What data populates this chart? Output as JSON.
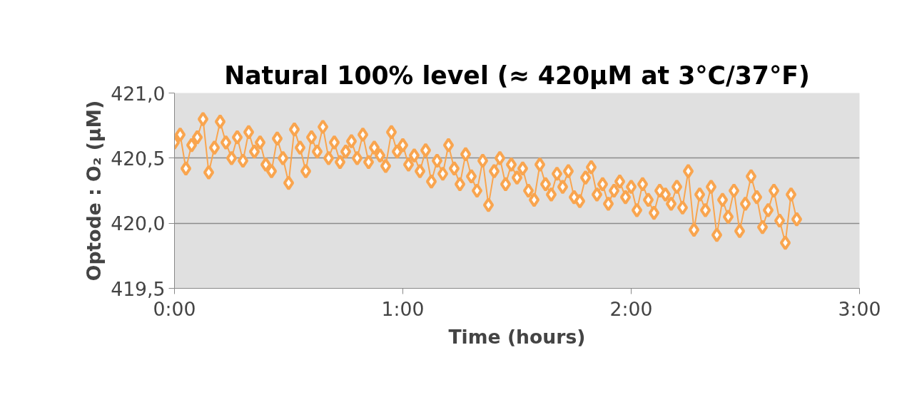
{
  "chart_data": {
    "type": "line",
    "title": "Natural 100% level (≈ 420µM at 3°C/37°F)",
    "xlabel": "Time (hours)",
    "ylabel": "Optode : O₂ (µM)",
    "marker": "diamond",
    "line_style": "solid",
    "grid": "y",
    "xlim": [
      0,
      3
    ],
    "xticks": [
      {
        "value": 0,
        "label": "0:00"
      },
      {
        "value": 1,
        "label": "1:00"
      },
      {
        "value": 2,
        "label": "2:00"
      },
      {
        "value": 3,
        "label": "3:00"
      }
    ],
    "ylim": [
      419.5,
      421.0
    ],
    "yticks": [
      {
        "value": 419.5,
        "label": "419,5"
      },
      {
        "value": 420.0,
        "label": "420,0"
      },
      {
        "value": 420.5,
        "label": "420,5"
      },
      {
        "value": 421.0,
        "label": "421,0"
      }
    ],
    "x": [
      0,
      0.025,
      0.05,
      0.075,
      0.1,
      0.125,
      0.15,
      0.175,
      0.2,
      0.225,
      0.25,
      0.275,
      0.3,
      0.325,
      0.35,
      0.375,
      0.4,
      0.425,
      0.45,
      0.475,
      0.5,
      0.525,
      0.55,
      0.575,
      0.6,
      0.625,
      0.65,
      0.675,
      0.7,
      0.725,
      0.75,
      0.775,
      0.8,
      0.825,
      0.85,
      0.875,
      0.9,
      0.925,
      0.95,
      0.975,
      1.0,
      1.025,
      1.05,
      1.075,
      1.1,
      1.125,
      1.15,
      1.175,
      1.2,
      1.225,
      1.25,
      1.275,
      1.3,
      1.325,
      1.35,
      1.375,
      1.4,
      1.425,
      1.45,
      1.475,
      1.5,
      1.525,
      1.55,
      1.575,
      1.6,
      1.625,
      1.65,
      1.675,
      1.7,
      1.725,
      1.75,
      1.775,
      1.8,
      1.825,
      1.85,
      1.875,
      1.9,
      1.925,
      1.95,
      1.975,
      2.0,
      2.025,
      2.05,
      2.075,
      2.1,
      2.125,
      2.15,
      2.175,
      2.2,
      2.225,
      2.25,
      2.275,
      2.3,
      2.325,
      2.35,
      2.375,
      2.4,
      2.425,
      2.45,
      2.475,
      2.5,
      2.525,
      2.55,
      2.575,
      2.6,
      2.625,
      2.65,
      2.675,
      2.7,
      2.725
    ],
    "series": [
      {
        "color": "#f9a54f",
        "values": [
          420.62,
          420.68,
          420.42,
          420.6,
          420.66,
          420.8,
          420.39,
          420.58,
          420.78,
          420.62,
          420.5,
          420.66,
          420.48,
          420.7,
          420.55,
          420.62,
          420.45,
          420.4,
          420.65,
          420.5,
          420.31,
          420.72,
          420.58,
          420.4,
          420.66,
          420.55,
          420.74,
          420.5,
          420.62,
          420.47,
          420.55,
          420.63,
          420.5,
          420.68,
          420.47,
          420.58,
          420.52,
          420.44,
          420.7,
          420.55,
          420.6,
          420.45,
          420.52,
          420.4,
          420.56,
          420.32,
          420.48,
          420.38,
          420.6,
          420.42,
          420.3,
          420.53,
          420.36,
          420.25,
          420.48,
          420.14,
          420.4,
          420.5,
          420.3,
          420.45,
          420.35,
          420.42,
          420.25,
          420.18,
          420.45,
          420.3,
          420.22,
          420.38,
          420.28,
          420.4,
          420.2,
          420.17,
          420.35,
          420.43,
          420.22,
          420.3,
          420.15,
          420.25,
          420.32,
          420.2,
          420.28,
          420.1,
          420.3,
          420.18,
          420.08,
          420.25,
          420.22,
          420.15,
          420.28,
          420.12,
          420.4,
          419.95,
          420.22,
          420.1,
          420.28,
          419.91,
          420.18,
          420.05,
          420.25,
          419.94,
          420.15,
          420.36,
          420.2,
          419.97,
          420.1,
          420.25,
          420.02,
          419.85,
          420.22,
          420.03
        ]
      }
    ]
  }
}
